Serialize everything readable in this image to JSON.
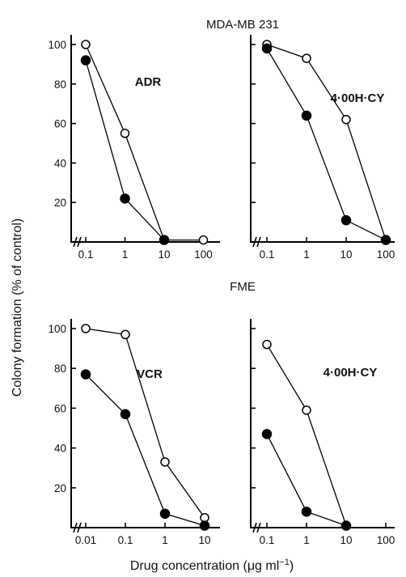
{
  "figure": {
    "row_titles": [
      "MDA-MB 231",
      "FME"
    ],
    "ylabel": "Colony formation (% of control)",
    "xlabel_main": "Drug concentration (",
    "xlabel_mu": "μ",
    "xlabel_unit": "g ml",
    "xlabel_sup": "−1",
    "xlabel_close": ")"
  },
  "chart_data": [
    {
      "type": "line",
      "panel": "top-left",
      "row_title": "MDA-MB 231",
      "drug": "ADR",
      "x_scale": "log",
      "x_ticks": [
        "0.1",
        "1",
        "10",
        "100"
      ],
      "y_ticks": [
        "20",
        "40",
        "60",
        "80",
        "100"
      ],
      "ylim": [
        0,
        100
      ],
      "series": [
        {
          "marker": "open-circle",
          "x": [
            0.1,
            1,
            10,
            100
          ],
          "y": [
            100,
            55,
            1,
            1
          ]
        },
        {
          "marker": "filled-circle",
          "x": [
            0.1,
            1,
            10
          ],
          "y": [
            92,
            22,
            1
          ]
        }
      ]
    },
    {
      "type": "line",
      "panel": "top-right",
      "row_title": "MDA-MB 231",
      "drug": "4·00H·CY",
      "x_scale": "log",
      "x_ticks": [
        "0.1",
        "1",
        "10",
        "100"
      ],
      "y_ticks": [],
      "ylim": [
        0,
        100
      ],
      "series": [
        {
          "marker": "open-circle",
          "x": [
            0.1,
            1,
            10,
            100
          ],
          "y": [
            100,
            93,
            62,
            1
          ]
        },
        {
          "marker": "filled-circle",
          "x": [
            0.1,
            1,
            10,
            100
          ],
          "y": [
            98,
            64,
            11,
            1
          ]
        }
      ]
    },
    {
      "type": "line",
      "panel": "bottom-left",
      "row_title": "FME",
      "drug": "VCR",
      "x_scale": "log",
      "x_ticks": [
        "0.01",
        "0.1",
        "1",
        "10"
      ],
      "y_ticks": [
        "20",
        "40",
        "60",
        "80",
        "100"
      ],
      "ylim": [
        0,
        100
      ],
      "series": [
        {
          "marker": "open-circle",
          "x": [
            0.01,
            0.1,
            1,
            10
          ],
          "y": [
            100,
            97,
            33,
            5
          ]
        },
        {
          "marker": "filled-circle",
          "x": [
            0.01,
            0.1,
            1,
            10
          ],
          "y": [
            77,
            57,
            7,
            1
          ]
        }
      ]
    },
    {
      "type": "line",
      "panel": "bottom-right",
      "row_title": "FME",
      "drug": "4·00H·CY",
      "x_scale": "log",
      "x_ticks": [
        "0.1",
        "1",
        "10",
        "100"
      ],
      "y_ticks": [],
      "ylim": [
        0,
        100
      ],
      "series": [
        {
          "marker": "open-circle",
          "x": [
            0.1,
            1,
            10
          ],
          "y": [
            92,
            59,
            1
          ]
        },
        {
          "marker": "filled-circle",
          "x": [
            0.1,
            1,
            10
          ],
          "y": [
            47,
            8,
            1
          ]
        }
      ]
    }
  ]
}
